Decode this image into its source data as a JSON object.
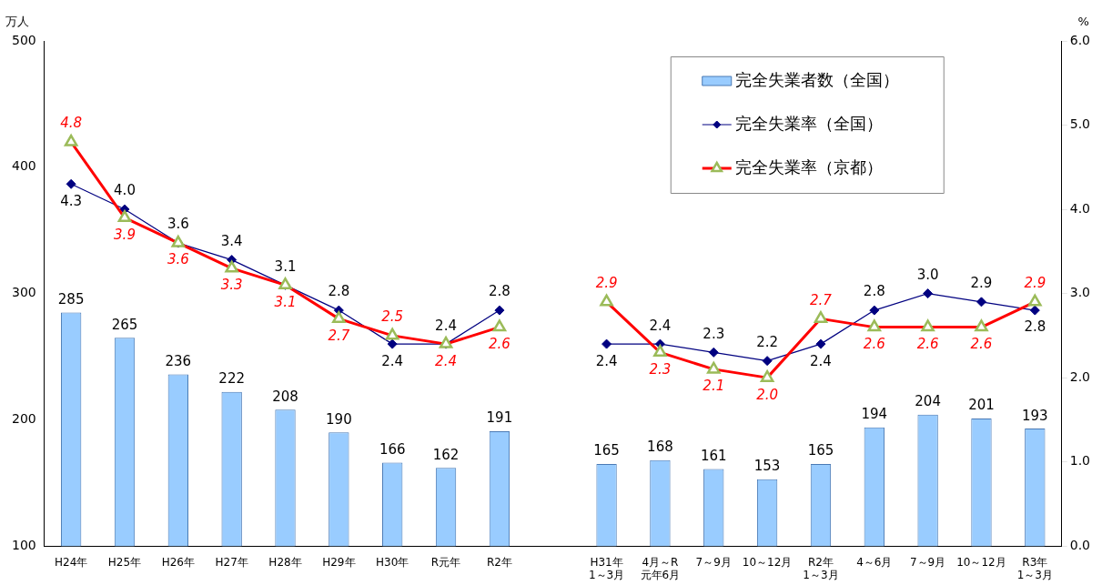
{
  "chart_data": {
    "type": "bar",
    "ylabel": "万人",
    "y2label": "%",
    "categories": [
      "H24年",
      "H25年",
      "H26年",
      "H27年",
      "H28年",
      "H29年",
      "H30年",
      "R元年",
      "R2年",
      null,
      "H31年\n1～3月",
      "4月～R\n元年6月",
      "7～9月",
      "10～12月",
      "R2年\n1～3月",
      "4～6月",
      "7～9月",
      "10～12月",
      "R3年\n1～3月"
    ],
    "series": [
      {
        "name": "完全失業者数（全国）",
        "color": "#99ccff",
        "values": [
          285,
          265,
          236,
          222,
          208,
          190,
          166,
          162,
          191,
          null,
          165,
          168,
          161,
          153,
          165,
          194,
          204,
          201,
          193
        ]
      },
      {
        "name": "完全失業率（全国）",
        "type": "line",
        "axis": "y2",
        "color": "#000080",
        "marker": "diamond",
        "values": [
          4.3,
          4.0,
          3.6,
          3.4,
          3.1,
          2.8,
          2.4,
          2.4,
          2.8,
          null,
          2.4,
          2.4,
          2.3,
          2.2,
          2.4,
          2.8,
          3.0,
          2.9,
          2.8
        ],
        "value_labels": [
          "4.3",
          "4.0",
          "3.6",
          "3.4",
          "3.1",
          "2.8",
          "2.4",
          "2.4",
          "2.8",
          null,
          "2.4",
          "2.4",
          "2.3",
          "2.2",
          "2.4",
          "2.8",
          "3.0",
          "2.9",
          "2.8"
        ]
      },
      {
        "name": "完全失業率（京都）",
        "type": "line",
        "axis": "y2",
        "color": "#ff0000",
        "marker": "triangle",
        "values": [
          4.8,
          3.9,
          3.6,
          3.3,
          3.1,
          2.7,
          2.5,
          2.4,
          2.6,
          null,
          2.9,
          2.3,
          2.1,
          2.0,
          2.7,
          2.6,
          2.6,
          2.6,
          2.9
        ],
        "value_labels": [
          "4.8",
          "3.9",
          "3.6",
          "3.3",
          "3.1",
          "2.7",
          "2.5",
          "2.4",
          "2.6",
          null,
          "2.9",
          "2.3",
          "2.1",
          "2.0",
          "2.7",
          "2.6",
          "2.6",
          "2.6",
          "2.9"
        ]
      }
    ],
    "ylim": [
      100,
      500
    ],
    "yticks": [
      100,
      200,
      300,
      400,
      500
    ],
    "y2lim": [
      0,
      6
    ],
    "y2ticks": [
      {
        "value": 0,
        "label": "0.0"
      },
      {
        "value": 1,
        "label": "1.0"
      },
      {
        "value": 2,
        "label": "2.0"
      },
      {
        "value": 3,
        "label": "3.0"
      },
      {
        "value": 4,
        "label": "4.0"
      },
      {
        "value": 5,
        "label": "5.0"
      },
      {
        "value": 6,
        "label": "6.0"
      }
    ],
    "data_labels": true,
    "legend": "top right",
    "grid": false,
    "line_style": "solid"
  }
}
